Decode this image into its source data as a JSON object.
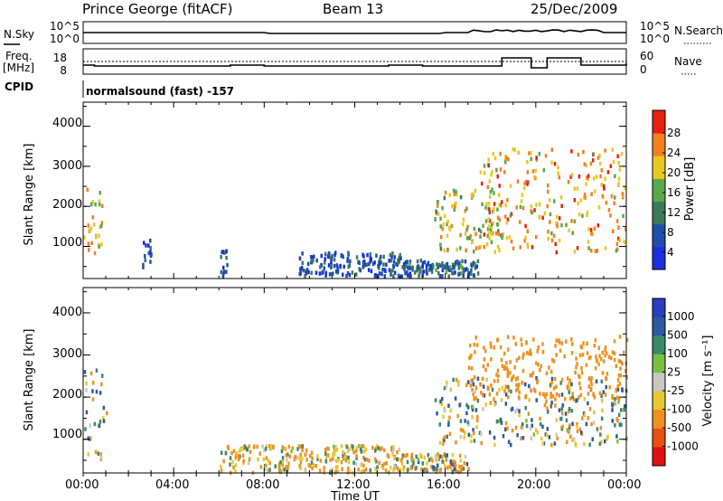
{
  "header": {
    "station": "Prince George (fitACF)",
    "beam": "Beam 13",
    "date": "25/Dec/2009"
  },
  "noise_panel": {
    "left_label": "N.Sky",
    "left_ticks": [
      "10^5",
      "10^0"
    ],
    "right_label": "N.Search",
    "right_ticks": [
      "10^5",
      "10^0"
    ]
  },
  "freq_panel": {
    "left_label_1": "Freq.",
    "left_label_2": "[MHz]",
    "left_ticks": [
      "18",
      "8"
    ],
    "right_label": "Nave",
    "right_ticks": [
      "60",
      "0"
    ]
  },
  "cpid": {
    "label": "CPID",
    "value": "normalsound (fast) -157"
  },
  "power_panel": {
    "ylabel": "Slant Range [km]",
    "yticks": [
      "4000",
      "3000",
      "2000",
      "1000"
    ],
    "colorbar_label": "Power [dB]",
    "colorbar_ticks": [
      "28",
      "24",
      "20",
      "16",
      "12",
      "8",
      "4"
    ],
    "colors": [
      "#1a2fe0",
      "#1f4fa8",
      "#3a7a5a",
      "#5aa84a",
      "#e8c820",
      "#f08020",
      "#e82010"
    ]
  },
  "velocity_panel": {
    "ylabel": "Slant Range [km]",
    "yticks": [
      "4000",
      "3000",
      "2000",
      "1000"
    ],
    "colorbar_label": "Velocity [m s⁻¹]",
    "colorbar_ticks": [
      "1000",
      "500",
      "100",
      "25",
      "-25",
      "-100",
      "-500",
      "-1000"
    ],
    "colors": [
      "#2a3fc0",
      "#2a5aa0",
      "#3a8a6a",
      "#7ac040",
      "#c8c8c0",
      "#e8c830",
      "#f09020",
      "#e85010",
      "#e01010"
    ]
  },
  "x_axis": {
    "ticks": [
      "00:00",
      "04:00",
      "08:00",
      "12:00",
      "16:00",
      "20:00",
      "00:00"
    ],
    "label": "Time UT"
  },
  "chart_data": {
    "type": "heatmap",
    "x_range_hours": [
      0,
      24
    ],
    "y_range_km": [
      200,
      4600
    ],
    "power_scale_db": [
      0,
      30
    ],
    "velocity_scale": [
      -1000,
      1000
    ],
    "power_blobs": [
      {
        "t0": 0.0,
        "t1": 0.8,
        "r0": 700,
        "r1": 2700,
        "p": 20
      },
      {
        "t0": 2.6,
        "t1": 3.0,
        "r0": 300,
        "r1": 1200,
        "p": 6
      },
      {
        "t0": 6.0,
        "t1": 6.4,
        "r0": 300,
        "r1": 1200,
        "p": 6
      },
      {
        "t0": 9.5,
        "t1": 14.0,
        "r0": 300,
        "r1": 900,
        "p": 6
      },
      {
        "t0": 14.0,
        "t1": 17.5,
        "r0": 300,
        "r1": 700,
        "p": 8
      },
      {
        "t0": 15.5,
        "t1": 18.5,
        "r0": 900,
        "r1": 2500,
        "p": 18
      },
      {
        "t0": 17.5,
        "t1": 20.5,
        "r0": 1000,
        "r1": 3500,
        "p": 22
      },
      {
        "t0": 20.5,
        "t1": 24.0,
        "r0": 900,
        "r1": 3500,
        "p": 22
      }
    ],
    "velocity_blobs": [
      {
        "t0": 0.0,
        "t1": 1.0,
        "r0": 500,
        "r1": 2700,
        "v": 0
      },
      {
        "t0": 6.0,
        "t1": 14.0,
        "r0": 250,
        "r1": 900,
        "v": -100
      },
      {
        "t0": 14.0,
        "t1": 17.0,
        "r0": 250,
        "r1": 700,
        "v": -60
      },
      {
        "t0": 15.5,
        "t1": 24.0,
        "r0": 900,
        "r1": 2500,
        "v": 0
      },
      {
        "t0": 17.0,
        "t1": 24.0,
        "r0": 2000,
        "r1": 3500,
        "v": -300
      }
    ]
  }
}
